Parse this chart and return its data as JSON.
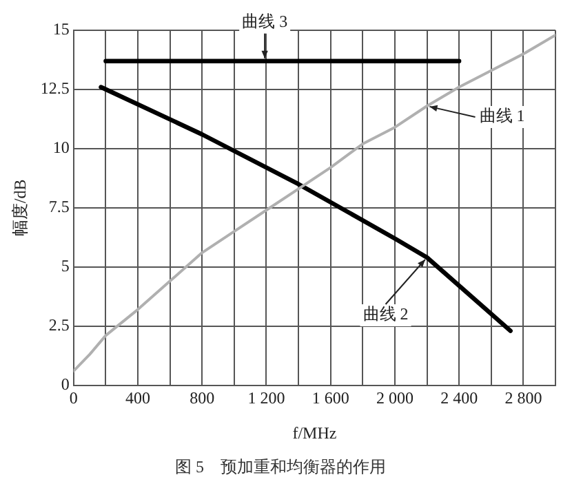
{
  "chart_data": {
    "type": "line",
    "title": "图 5　预加重和均衡器的作用",
    "xlabel": "f/MHz",
    "ylabel": "幅度/dB",
    "xlim": [
      0,
      3000
    ],
    "xticks": [
      0,
      {
        "value": 200,
        "label": null
      },
      400,
      {
        "value": 600,
        "label": null
      },
      800,
      {
        "value": 1000,
        "label": null
      },
      {
        "value": 1200,
        "label": "1 200"
      },
      {
        "value": 1400,
        "label": null
      },
      {
        "value": 1600,
        "label": "1 600"
      },
      {
        "value": 1800,
        "label": null
      },
      {
        "value": 2000,
        "label": "2 000"
      },
      {
        "value": 2200,
        "label": null
      },
      {
        "value": 2400,
        "label": "2 400"
      },
      {
        "value": 2600,
        "label": null
      },
      {
        "value": 2800,
        "label": "2 800"
      },
      {
        "value": 3000,
        "label": null
      }
    ],
    "ylim": [
      0,
      15
    ],
    "yticks": [
      0,
      2.5,
      5,
      7.5,
      10,
      12.5,
      15
    ],
    "grid": true,
    "marker": "none",
    "line_style": "solid",
    "series": [
      {
        "name": "曲线 1",
        "color": "#b0b0b0",
        "x": [
          0,
          100,
          200,
          400,
          600,
          800,
          1000,
          1200,
          1400,
          1600,
          1800,
          2000,
          2200,
          2400,
          2600,
          2800,
          3000
        ],
        "values": [
          0.6,
          1.3,
          2.1,
          3.2,
          4.4,
          5.6,
          6.5,
          7.4,
          8.3,
          9.2,
          10.2,
          10.9,
          11.8,
          12.6,
          13.3,
          14.0,
          14.8
        ]
      },
      {
        "name": "曲线 2",
        "color": "#000000",
        "x": [
          170,
          800,
          1400,
          2000,
          2200,
          2720
        ],
        "values": [
          12.6,
          10.6,
          8.5,
          6.2,
          5.4,
          2.3
        ]
      },
      {
        "name": "曲线 3",
        "color": "#000000",
        "x": [
          200,
          2400
        ],
        "values": [
          13.7,
          13.7
        ]
      }
    ]
  }
}
